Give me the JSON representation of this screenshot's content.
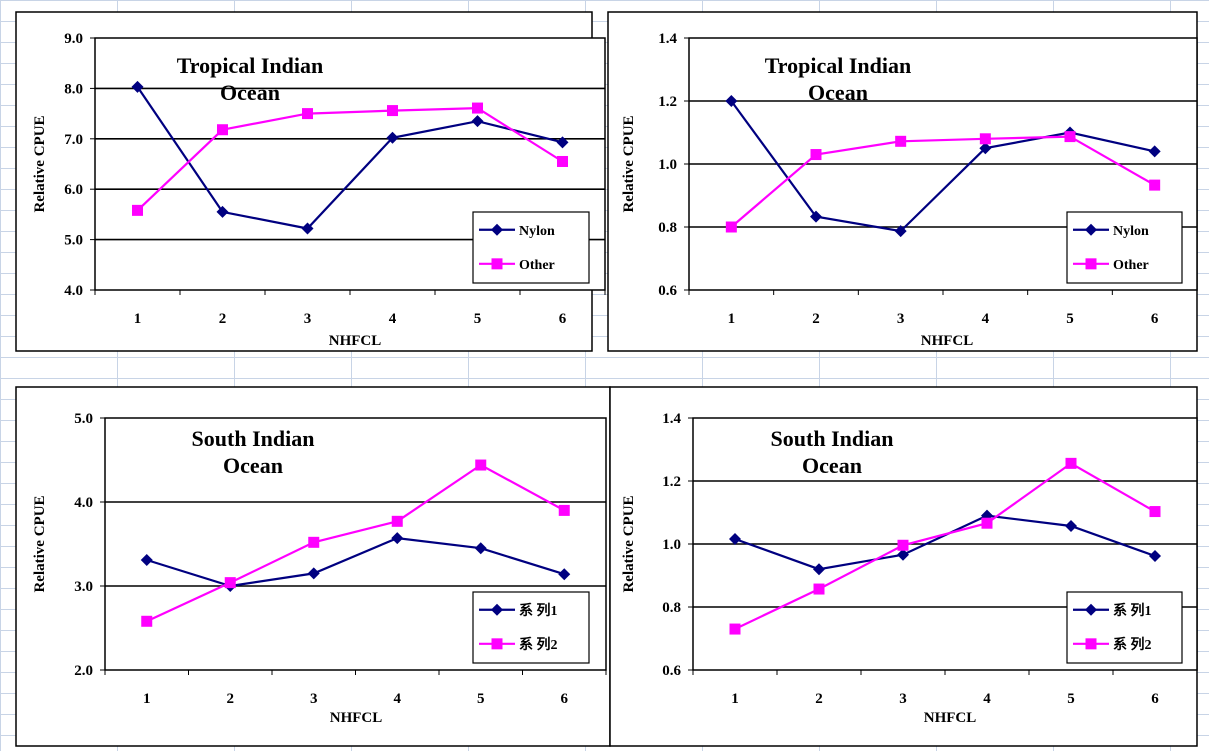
{
  "colors": {
    "series1": "#000080",
    "series2": "#ff00ff",
    "frame": "#000000",
    "gridline": "#000000",
    "background": "#ffffff"
  },
  "chart_data": [
    {
      "type": "line",
      "title_lines": [
        "Tropical Indian",
        "Ocean"
      ],
      "xlabel": "NHFCL",
      "ylabel": "Relative CPUE",
      "categories": [
        "1",
        "2",
        "3",
        "4",
        "5",
        "6"
      ],
      "ylim": [
        4.0,
        9.0
      ],
      "yticks": [
        4.0,
        5.0,
        6.0,
        7.0,
        8.0,
        9.0
      ],
      "ytick_labels": [
        "4.0",
        "5.0",
        "6.0",
        "7.0",
        "8.0",
        "9.0"
      ],
      "grid": "horizontal",
      "legend_position": "bottom-right",
      "series": [
        {
          "name": "Nylon",
          "marker": "diamond",
          "values": [
            8.03,
            5.55,
            5.22,
            7.02,
            7.35,
            6.93
          ]
        },
        {
          "name": "Other",
          "marker": "square",
          "values": [
            5.58,
            7.18,
            7.5,
            7.56,
            7.61,
            6.55
          ]
        }
      ]
    },
    {
      "type": "line",
      "title_lines": [
        "Tropical Indian",
        "Ocean"
      ],
      "xlabel": "NHFCL",
      "ylabel": "Relative CPUE",
      "categories": [
        "1",
        "2",
        "3",
        "4",
        "5",
        "6"
      ],
      "ylim": [
        0.6,
        1.4
      ],
      "yticks": [
        0.6,
        0.8,
        1.0,
        1.2,
        1.4
      ],
      "ytick_labels": [
        "0.6",
        "0.8",
        "1.0",
        "1.2",
        "1.4"
      ],
      "grid": "horizontal",
      "legend_position": "bottom-right",
      "series": [
        {
          "name": "Nylon",
          "marker": "diamond",
          "values": [
            1.2,
            0.833,
            0.787,
            1.05,
            1.1,
            1.04
          ]
        },
        {
          "name": "Other",
          "marker": "square",
          "values": [
            0.8,
            1.03,
            1.072,
            1.08,
            1.087,
            0.933
          ]
        }
      ]
    },
    {
      "type": "line",
      "title_lines": [
        "South Indian",
        "Ocean"
      ],
      "xlabel": "NHFCL",
      "ylabel": "Relative CPUE",
      "categories": [
        "1",
        "2",
        "3",
        "4",
        "5",
        "6"
      ],
      "ylim": [
        2.0,
        5.0
      ],
      "yticks": [
        2.0,
        3.0,
        4.0,
        5.0
      ],
      "ytick_labels": [
        "2.0",
        "3.0",
        "4.0",
        "5.0"
      ],
      "grid": "horizontal",
      "legend_position": "bottom-right",
      "series": [
        {
          "name": "系 列1",
          "marker": "diamond",
          "values": [
            3.31,
            3.0,
            3.15,
            3.57,
            3.45,
            3.14
          ]
        },
        {
          "name": "系 列2",
          "marker": "square",
          "values": [
            2.58,
            3.04,
            3.52,
            3.77,
            4.44,
            3.9
          ]
        }
      ]
    },
    {
      "type": "line",
      "title_lines": [
        "South Indian",
        "Ocean"
      ],
      "xlabel": "NHFCL",
      "ylabel": "Relative CPUE",
      "categories": [
        "1",
        "2",
        "3",
        "4",
        "5",
        "6"
      ],
      "ylim": [
        0.6,
        1.4
      ],
      "yticks": [
        0.6,
        0.8,
        1.0,
        1.2,
        1.4
      ],
      "ytick_labels": [
        "0.6",
        "0.8",
        "1.0",
        "1.2",
        "1.4"
      ],
      "grid": "horizontal",
      "legend_position": "bottom-right",
      "series": [
        {
          "name": "系 列1",
          "marker": "diamond",
          "values": [
            1.016,
            0.92,
            0.966,
            1.09,
            1.057,
            0.962
          ]
        },
        {
          "name": "系 列2",
          "marker": "square",
          "values": [
            0.73,
            0.857,
            0.996,
            1.066,
            1.256,
            1.103
          ]
        }
      ]
    }
  ]
}
